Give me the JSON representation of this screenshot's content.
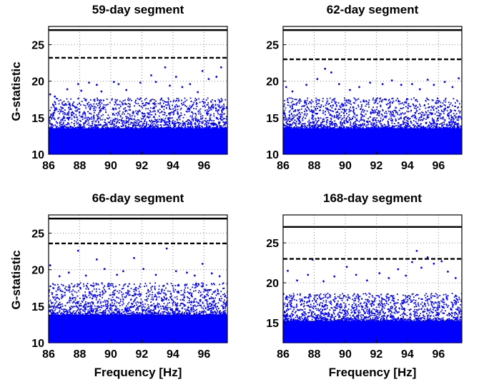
{
  "chart_data": [
    {
      "type": "scatter",
      "title": "59-day segment",
      "xlabel": "",
      "ylabel": "G-statistic",
      "xlim": [
        86,
        97.5
      ],
      "ylim": [
        10,
        27.5
      ],
      "xticks": [
        86,
        88,
        90,
        92,
        94,
        96
      ],
      "yticks": [
        10,
        15,
        20,
        25
      ],
      "grid": true,
      "point_color": "#0000ff",
      "thresholds": [
        {
          "style": "solid",
          "value": 27.0
        },
        {
          "style": "dashed",
          "value": 23.2
        }
      ],
      "dense_band_top": 16.5,
      "series": [
        {
          "values": [
            [
              86.1,
              18.2
            ],
            [
              86.4,
              17.9
            ],
            [
              87.2,
              18.9
            ],
            [
              87.9,
              19.6
            ],
            [
              88.1,
              18.7
            ],
            [
              88.6,
              19.8
            ],
            [
              89.1,
              19.5
            ],
            [
              89.4,
              18.6
            ],
            [
              90.2,
              19.9
            ],
            [
              90.5,
              19.6
            ],
            [
              91.0,
              18.8
            ],
            [
              91.9,
              19.8
            ],
            [
              92.6,
              20.8
            ],
            [
              92.9,
              19.9
            ],
            [
              93.5,
              21.9
            ],
            [
              93.8,
              19.4
            ],
            [
              94.2,
              20.6
            ],
            [
              94.6,
              19.2
            ],
            [
              95.1,
              19.6
            ],
            [
              95.6,
              18.5
            ],
            [
              95.9,
              21.4
            ],
            [
              96.3,
              20.3
            ],
            [
              96.8,
              20.6
            ],
            [
              97.1,
              21.9
            ]
          ]
        }
      ]
    },
    {
      "type": "scatter",
      "title": "62-day segment",
      "xlabel": "",
      "ylabel": "",
      "xlim": [
        86,
        97.5
      ],
      "ylim": [
        10,
        27.5
      ],
      "xticks": [
        86,
        88,
        90,
        92,
        94,
        96
      ],
      "yticks": [
        10,
        15,
        20,
        25
      ],
      "grid": true,
      "point_color": "#0000ff",
      "thresholds": [
        {
          "style": "solid",
          "value": 27.0
        },
        {
          "style": "dashed",
          "value": 23.0
        }
      ],
      "dense_band_top": 16.5,
      "series": [
        {
          "values": [
            [
              86.2,
              19.2
            ],
            [
              86.6,
              18.6
            ],
            [
              87.5,
              19.5
            ],
            [
              88.2,
              20.3
            ],
            [
              88.7,
              21.7
            ],
            [
              89.1,
              21.2
            ],
            [
              89.6,
              19.6
            ],
            [
              90.3,
              18.8
            ],
            [
              90.9,
              19.2
            ],
            [
              91.6,
              19.8
            ],
            [
              92.4,
              19.6
            ],
            [
              93.0,
              20.1
            ],
            [
              93.6,
              19.5
            ],
            [
              94.3,
              19.6
            ],
            [
              94.8,
              18.9
            ],
            [
              95.3,
              20.2
            ],
            [
              95.7,
              19.5
            ],
            [
              96.4,
              19.9
            ],
            [
              96.9,
              19.2
            ],
            [
              97.3,
              20.4
            ]
          ]
        }
      ]
    },
    {
      "type": "scatter",
      "title": "66-day segment",
      "xlabel": "Frequency [Hz]",
      "ylabel": "G-statistic",
      "xlim": [
        86,
        97.5
      ],
      "ylim": [
        10,
        27.5
      ],
      "xticks": [
        86,
        88,
        90,
        92,
        94,
        96
      ],
      "yticks": [
        10,
        15,
        20,
        25
      ],
      "grid": true,
      "point_color": "#0000ff",
      "thresholds": [
        {
          "style": "solid",
          "value": 27.0
        },
        {
          "style": "dashed",
          "value": 23.6
        }
      ],
      "dense_band_top": 17.0,
      "series": [
        {
          "values": [
            [
              86.1,
              20.6
            ],
            [
              86.7,
              19.1
            ],
            [
              87.3,
              19.6
            ],
            [
              87.9,
              22.6
            ],
            [
              88.4,
              19.2
            ],
            [
              89.1,
              21.4
            ],
            [
              89.6,
              20.1
            ],
            [
              90.4,
              19.3
            ],
            [
              90.8,
              19.8
            ],
            [
              91.5,
              21.6
            ],
            [
              92.1,
              20.1
            ],
            [
              92.9,
              19.3
            ],
            [
              93.6,
              22.9
            ],
            [
              94.2,
              19.8
            ],
            [
              94.9,
              19.6
            ],
            [
              95.4,
              19.2
            ],
            [
              95.9,
              20.8
            ],
            [
              96.5,
              19.5
            ],
            [
              97.0,
              19.1
            ]
          ]
        }
      ]
    },
    {
      "type": "scatter",
      "title": "168-day segment",
      "xlabel": "Frequency [Hz]",
      "ylabel": "",
      "xlim": [
        86,
        97.5
      ],
      "ylim": [
        12.5,
        28.5
      ],
      "xticks": [
        86,
        88,
        90,
        92,
        94,
        96
      ],
      "yticks": [
        15,
        20,
        25
      ],
      "grid": true,
      "point_color": "#0000ff",
      "thresholds": [
        {
          "style": "solid",
          "value": 27.0
        },
        {
          "style": "dashed",
          "value": 23.0
        }
      ],
      "dense_band_top": 17.5,
      "series": [
        {
          "values": [
            [
              86.3,
              21.5
            ],
            [
              86.9,
              20.3
            ],
            [
              87.6,
              21.0
            ],
            [
              87.9,
              22.9
            ],
            [
              88.6,
              20.2
            ],
            [
              89.3,
              20.8
            ],
            [
              90.1,
              22.0
            ],
            [
              90.7,
              21.0
            ],
            [
              91.4,
              20.3
            ],
            [
              92.2,
              21.2
            ],
            [
              92.8,
              20.6
            ],
            [
              93.4,
              21.7
            ],
            [
              93.9,
              20.9
            ],
            [
              94.3,
              22.6
            ],
            [
              94.6,
              24.0
            ],
            [
              94.9,
              21.9
            ],
            [
              95.3,
              23.2
            ],
            [
              95.7,
              22.4
            ],
            [
              96.2,
              22.7
            ],
            [
              96.6,
              21.4
            ],
            [
              97.1,
              20.6
            ]
          ]
        }
      ]
    }
  ]
}
